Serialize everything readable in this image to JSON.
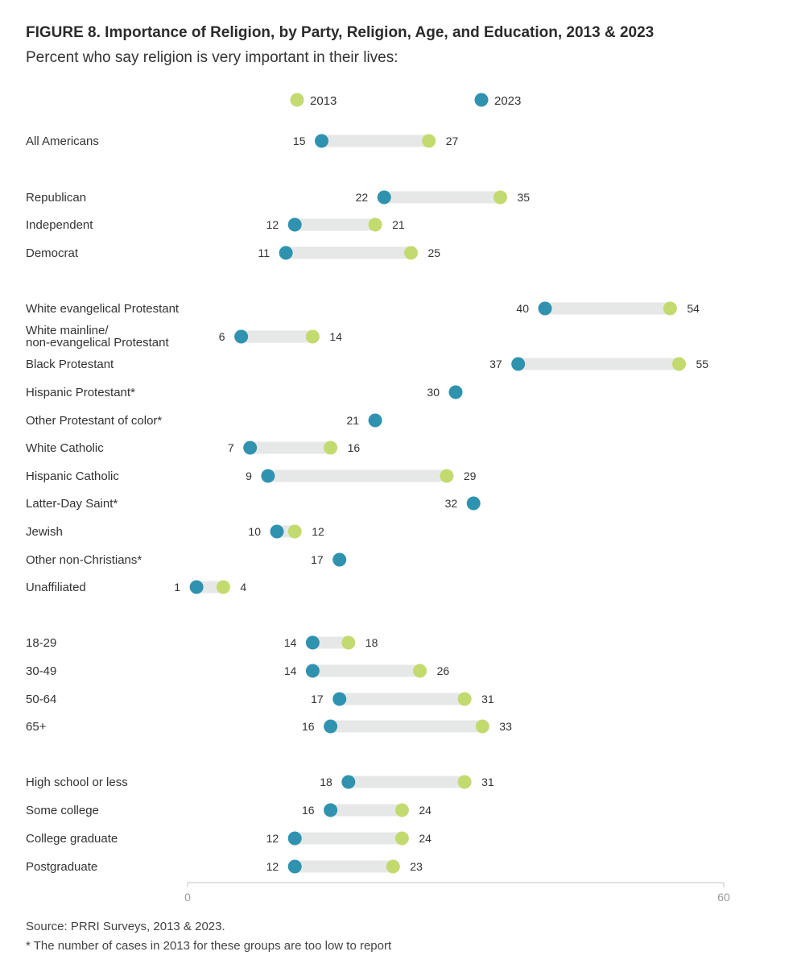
{
  "title": "FIGURE 8. Importance of Religion, by Party, Religion, Age, and Education, 2013 & 2023",
  "subtitle": "Percent who say religion is very important in their lives:",
  "source": "Source: PRRI Surveys, 2013 & 2023.",
  "footnote": "* The number of cases in 2013 for these groups are too low to report",
  "colors": {
    "y2013": "#c3da6e",
    "y2023": "#2f93b0",
    "connector": "#e6e8e8",
    "axis": "#cfcfcf"
  },
  "chart_data": {
    "type": "dumbbell",
    "xlim": [
      0,
      60
    ],
    "ticks": [
      "0",
      "60"
    ],
    "legend": [
      "2013",
      "2023"
    ],
    "series": [
      {
        "name": "2013",
        "values": [
          27,
          35,
          21,
          25,
          54,
          14,
          55,
          null,
          null,
          16,
          29,
          null,
          12,
          null,
          4,
          18,
          26,
          31,
          33,
          31,
          24,
          24,
          23
        ]
      },
      {
        "name": "2023",
        "values": [
          15,
          22,
          12,
          11,
          40,
          6,
          37,
          30,
          21,
          7,
          9,
          32,
          10,
          17,
          1,
          14,
          14,
          17,
          16,
          18,
          16,
          12,
          12
        ]
      }
    ],
    "categories": [
      "All Americans",
      "Republican",
      "Independent",
      "Democrat",
      "White evangelical Protestant",
      "White mainline/\nnon-evangelical Protestant",
      "Black Protestant",
      "Hispanic Protestant*",
      "Other Protestant of color*",
      "White Catholic",
      "Hispanic Catholic",
      "Latter-Day Saint*",
      "Jewish",
      "Other non-Christians*",
      "Unaffiliated",
      "18-29",
      "30-49",
      "50-64",
      "65+",
      "High school or less",
      "Some college",
      "College graduate",
      "Postgraduate"
    ]
  }
}
